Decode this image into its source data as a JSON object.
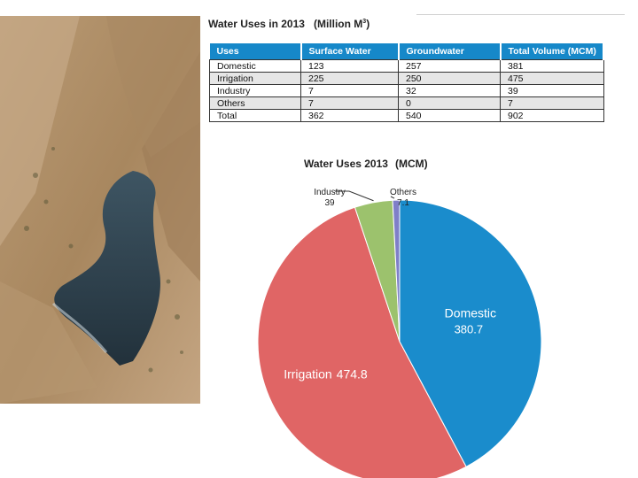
{
  "table": {
    "title": "Water Uses in 2013",
    "unit": "(Million M",
    "unit_sup": "3",
    "unit_close": ")",
    "headers": [
      "Uses",
      "Surface Water",
      "Groundwater",
      "Total Volume (MCM)"
    ],
    "rows": [
      [
        "Domestic",
        "123",
        "257",
        "381"
      ],
      [
        "Irrigation",
        "225",
        "250",
        "475"
      ],
      [
        "Industry",
        "7",
        "32",
        "39"
      ],
      [
        "Others",
        "7",
        "0",
        "7"
      ],
      [
        "Total",
        "362",
        "540",
        "902"
      ]
    ]
  },
  "chart_data": {
    "type": "pie",
    "title": "Water Uses 2013",
    "title_unit": "(MCM)",
    "slices": [
      {
        "label": "Domestic",
        "value": 380.7,
        "value_text": "380.7",
        "color": "#1a8ccc"
      },
      {
        "label": "Irrigation",
        "value": 474.8,
        "value_text": "474.8",
        "color": "#e06565"
      },
      {
        "label": "Industry",
        "value": 39,
        "value_text": "39",
        "color": "#9cc26d"
      },
      {
        "label": "Others",
        "value": 7.1,
        "value_text": "7.1",
        "color": "#7f7fc8"
      }
    ]
  },
  "colors": {
    "table_header": "#1688c9",
    "row_shade": "#e6e6e6"
  }
}
